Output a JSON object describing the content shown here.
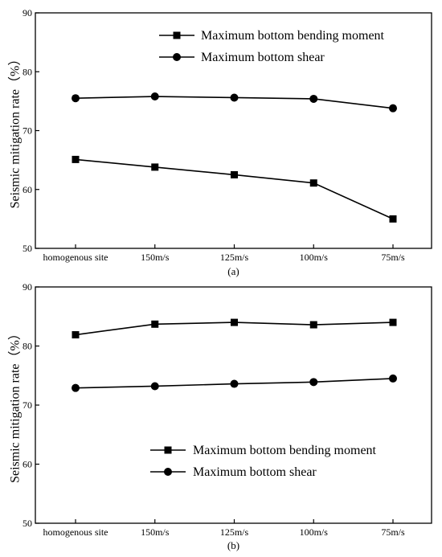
{
  "chart_data": [
    {
      "type": "line",
      "caption": "(a)",
      "categories": [
        "homogenous site",
        "150m/s",
        "125m/s",
        "100m/s",
        "75m/s"
      ],
      "ylabel": "Seismic mitigation rate（%）",
      "ylim": [
        50,
        90
      ],
      "yticks": [
        50,
        60,
        70,
        80,
        90
      ],
      "legend_position": "top-right",
      "grid": false,
      "series": [
        {
          "name": "Maximum bottom bending moment",
          "marker": "square",
          "values": [
            65.1,
            63.8,
            62.5,
            61.1,
            55.0
          ]
        },
        {
          "name": "Maximum bottom shear",
          "marker": "circle",
          "values": [
            75.5,
            75.8,
            75.6,
            75.4,
            73.8
          ]
        }
      ]
    },
    {
      "type": "line",
      "caption": "(b)",
      "categories": [
        "homogenous site",
        "150m/s",
        "125m/s",
        "100m/s",
        "75m/s"
      ],
      "ylabel": "Seismic mitigation rate（%）",
      "ylim": [
        50,
        90
      ],
      "yticks": [
        50,
        60,
        70,
        80,
        90
      ],
      "legend_position": "bottom-right",
      "grid": false,
      "series": [
        {
          "name": "Maximum bottom bending moment",
          "marker": "square",
          "values": [
            81.9,
            83.7,
            84.0,
            83.6,
            84.0
          ]
        },
        {
          "name": "Maximum bottom shear",
          "marker": "circle",
          "values": [
            72.9,
            73.2,
            73.6,
            73.9,
            74.5
          ]
        }
      ]
    }
  ]
}
